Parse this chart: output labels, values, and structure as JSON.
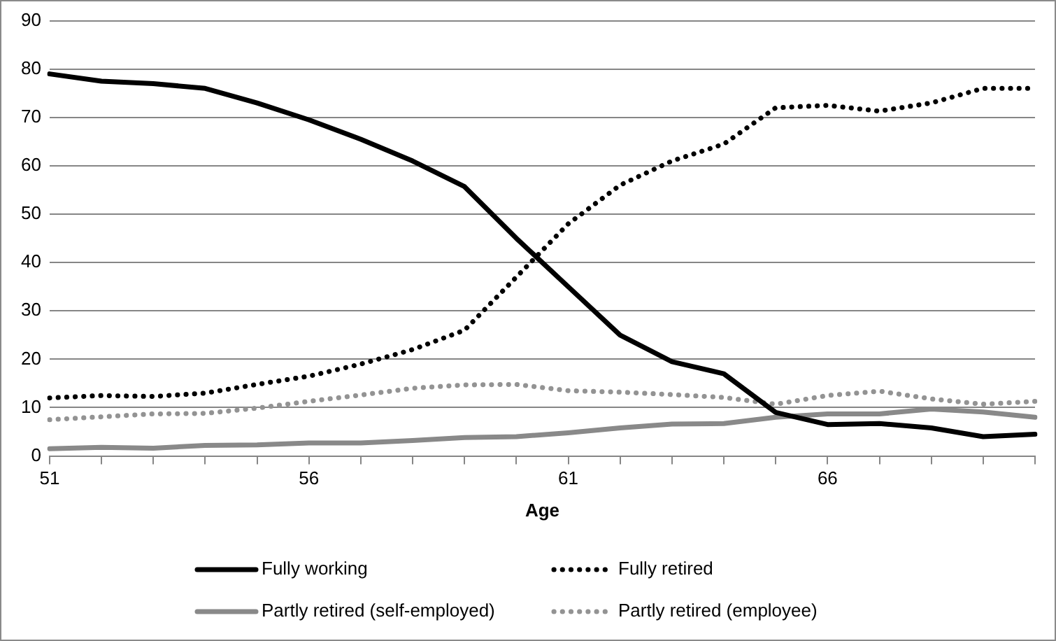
{
  "chart_data": {
    "type": "line",
    "xlabel": "Age",
    "categories": [
      "51",
      null,
      null,
      null,
      null,
      "56",
      null,
      null,
      null,
      null,
      "61",
      null,
      null,
      null,
      null,
      "66",
      null,
      null,
      null,
      null
    ],
    "ylim": [
      0,
      90
    ],
    "yticks": [
      0,
      10,
      20,
      30,
      40,
      50,
      60,
      70,
      80,
      90
    ],
    "grid": "y",
    "legend": "bottom",
    "marker": "none",
    "series": [
      {
        "name": "Fully working",
        "color": "#000000",
        "line_style": "solid",
        "values": [
          79,
          77.5,
          77,
          76,
          73,
          69.5,
          65.5,
          61,
          55.7,
          45,
          35,
          25,
          19.5,
          17,
          9,
          6.5,
          6.7,
          5.8,
          4,
          4.5
        ]
      },
      {
        "name": "Fully retired",
        "color": "#000000",
        "line_style": "dotted",
        "values": [
          12,
          12.5,
          12.3,
          13,
          14.8,
          16.5,
          19,
          22,
          26,
          37,
          48,
          56,
          61,
          64.5,
          72,
          72.5,
          71.3,
          73,
          76,
          76
        ]
      },
      {
        "name": "Partly retired (self-employed)",
        "color": "#898989",
        "line_style": "solid",
        "values": [
          1.5,
          1.8,
          1.6,
          2.2,
          2.3,
          2.7,
          2.7,
          3.2,
          3.8,
          4,
          4.8,
          5.8,
          6.6,
          6.7,
          8,
          8.7,
          8.7,
          9.7,
          9.1,
          8
        ]
      },
      {
        "name": "Partly retired (employee)",
        "color": "#939393",
        "line_style": "dotted",
        "values": [
          7.5,
          8.1,
          8.7,
          8.8,
          9.9,
          11.3,
          12.6,
          14,
          14.7,
          14.8,
          13.5,
          13.2,
          12.7,
          12.1,
          10.7,
          12.5,
          13.4,
          11.8,
          10.7,
          11.3
        ]
      }
    ]
  }
}
